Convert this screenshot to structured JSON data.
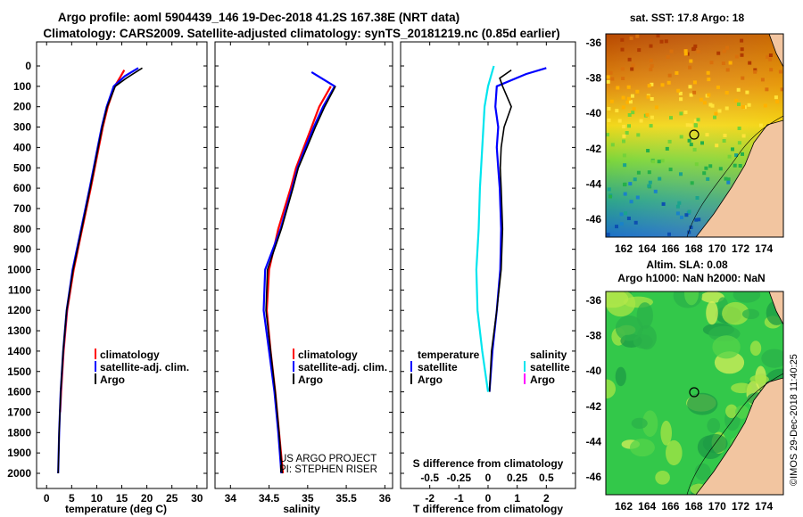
{
  "header": {
    "line1": "Argo profile: aoml 5904439_146 19-Dec-2018 41.2S 167.38E (NRT data)",
    "line2": "Climatology: CARS2009. Satellite-adjusted climatology: synTS_20181219.nc (0.85d earlier)"
  },
  "colors": {
    "climatology": "#ff0000",
    "satellite": "#0000ff",
    "argo": "#000000",
    "sat_s": "#00e5ee",
    "argo_s": "#ff00ff"
  },
  "chart_data": [
    {
      "type": "line",
      "name": "temperature",
      "xlabel": "temperature (deg C)",
      "xlim": [
        -2,
        32
      ],
      "xticks": [
        0,
        5,
        10,
        15,
        20,
        25,
        30
      ],
      "ylim": [
        0,
        2050
      ],
      "yticks": [
        0,
        100,
        200,
        300,
        400,
        500,
        600,
        700,
        800,
        900,
        1000,
        1100,
        1200,
        1300,
        1400,
        1500,
        1600,
        1700,
        1800,
        1900,
        2000
      ],
      "legend": [
        "climatology",
        "satellite-adj. clim.",
        "Argo"
      ],
      "series": [
        {
          "name": "climatology",
          "color": "#ff0000",
          "depth": [
            20,
            50,
            100,
            200,
            300,
            400,
            500,
            600,
            800,
            1000,
            1200,
            1400,
            1600,
            1700
          ],
          "values": [
            15.5,
            14.8,
            13.6,
            12.2,
            11.2,
            10.4,
            9.6,
            8.8,
            7.1,
            5.4,
            4.1,
            3.4,
            2.9,
            2.7
          ]
        },
        {
          "name": "satellite-adj. clim.",
          "color": "#0000ff",
          "depth": [
            10,
            50,
            100,
            200,
            300,
            400,
            500,
            600,
            800,
            1000,
            1200,
            1400,
            1600,
            1800,
            2000
          ],
          "values": [
            18.3,
            15.6,
            13.4,
            12.0,
            11.0,
            10.2,
            9.4,
            8.6,
            6.9,
            5.2,
            4.0,
            3.3,
            2.8,
            2.5,
            2.3
          ]
        },
        {
          "name": "Argo",
          "color": "#000000",
          "depth": [
            10,
            30,
            60,
            100,
            200,
            300,
            400,
            500,
            600,
            800,
            1000,
            1200,
            1400,
            1600,
            1800,
            2000
          ],
          "values": [
            19.1,
            17.8,
            15.9,
            13.7,
            12.1,
            11.1,
            10.3,
            9.5,
            8.7,
            7.0,
            5.3,
            4.0,
            3.3,
            2.8,
            2.5,
            2.3
          ]
        }
      ]
    },
    {
      "type": "line",
      "name": "salinity",
      "xlabel": "salinity",
      "xlim": [
        33.8,
        36.1
      ],
      "xticks": [
        34,
        34.5,
        35,
        35.5,
        36
      ],
      "xticklabels": [
        "34",
        "34.5",
        "35",
        "35.5",
        "36"
      ],
      "legend": [
        "climatology",
        "satellite-adj. clim.",
        "Argo"
      ],
      "series": [
        {
          "name": "climatology",
          "color": "#ff0000",
          "depth": [
            100,
            200,
            300,
            400,
            500,
            600,
            800,
            1000,
            1200,
            1400,
            1600,
            1800,
            2000
          ],
          "values": [
            35.3,
            35.15,
            35.05,
            34.95,
            34.85,
            34.78,
            34.62,
            34.5,
            34.47,
            34.52,
            34.58,
            34.63,
            34.68
          ]
        },
        {
          "name": "satellite-adj. clim.",
          "color": "#0000ff",
          "depth": [
            30,
            100,
            200,
            300,
            400,
            500,
            600,
            800,
            1000,
            1200,
            1400,
            1600,
            1800,
            2000
          ],
          "values": [
            35.05,
            35.35,
            35.2,
            35.08,
            34.97,
            34.87,
            34.8,
            34.65,
            34.45,
            34.43,
            34.5,
            34.57,
            34.62,
            34.66
          ]
        },
        {
          "name": "Argo",
          "color": "#000000",
          "depth": [
            100,
            200,
            300,
            400,
            500,
            600,
            800,
            1000,
            1200,
            1400,
            1600,
            1800,
            2000
          ],
          "values": [
            35.36,
            35.22,
            35.1,
            34.99,
            34.88,
            34.81,
            34.66,
            34.48,
            34.46,
            34.52,
            34.58,
            34.63,
            34.67
          ]
        }
      ]
    },
    {
      "type": "line",
      "name": "difference",
      "xlabel": "T difference from climatology",
      "xlim": [
        -3,
        3
      ],
      "xticks": [
        -2,
        -1,
        0,
        1,
        2
      ],
      "title2": "S difference from climatology",
      "sxticklabels": [
        "-0.5",
        "-0.25",
        "0",
        "0.25",
        "0.5"
      ],
      "legend_left": {
        "title": "temperature",
        "items": [
          "satellite",
          "Argo"
        ]
      },
      "legend_right": {
        "title": "salinity",
        "items": [
          "satellite",
          "Argo"
        ]
      },
      "series": [
        {
          "name": "T satellite",
          "color": "#0000ff",
          "depth": [
            10,
            40,
            100,
            200,
            300,
            400,
            500,
            600,
            800,
            1000,
            1200,
            1400,
            1600
          ],
          "values": [
            2.0,
            1.3,
            0.3,
            0.25,
            0.35,
            0.3,
            0.35,
            0.4,
            0.45,
            0.42,
            0.3,
            0.15,
            0.05
          ]
        },
        {
          "name": "T Argo",
          "color": "#000000",
          "depth": [
            20,
            60,
            100,
            200,
            300,
            400,
            500,
            600,
            800,
            1000,
            1200,
            1400,
            1600
          ],
          "values": [
            0.8,
            0.4,
            0.5,
            0.8,
            0.55,
            0.45,
            0.42,
            0.45,
            0.5,
            0.45,
            0.3,
            0.12,
            0.05
          ]
        },
        {
          "name": "S satellite",
          "color": "#00e5ee",
          "depth": [
            0,
            100,
            200,
            400,
            600,
            800,
            1000,
            1200,
            1400,
            1600
          ],
          "values": [
            0.05,
            0.0,
            -0.03,
            -0.05,
            -0.07,
            -0.08,
            -0.1,
            -0.09,
            -0.05,
            0.0
          ]
        }
      ]
    }
  ],
  "credit": {
    "line1": "US ARGO PROJECT",
    "line2": "PI: STEPHEN RISER"
  },
  "maps": {
    "sst": {
      "title": "sat. SST: 17.8 Argo: 18"
    },
    "sla": {
      "title1": "Altim. SLA: 0.08",
      "title2": "Argo h1000: NaN h2000: NaN"
    },
    "lat_labels": [
      "-36",
      "-38",
      "-40",
      "-42",
      "-44",
      "-46"
    ],
    "lon_labels": [
      "162",
      "164",
      "166",
      "168",
      "170",
      "172",
      "174"
    ],
    "float_lat": -41.2,
    "float_lon": 167.38
  },
  "imos_stamp": "©IMOS 29-Dec-2018 11:40:25"
}
